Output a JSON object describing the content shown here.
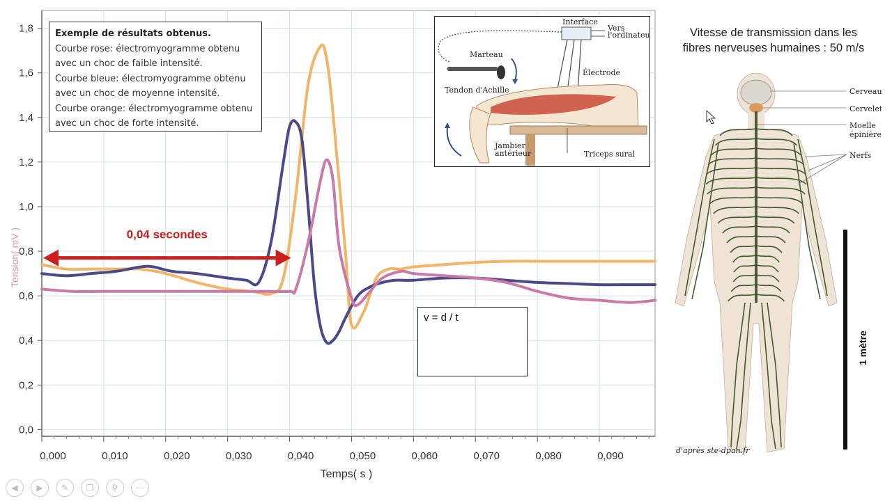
{
  "chart_data": {
    "type": "line",
    "xlabel": "Temps( s )",
    "ylabel": "Tension( mV )",
    "xlim": [
      0.0,
      0.099
    ],
    "ylim": [
      -0.03,
      1.88
    ],
    "x_ticks": [
      "0,000",
      "0,010",
      "0,020",
      "0,030",
      "0,040",
      "0,050",
      "0,060",
      "0,070",
      "0,080",
      "0,090"
    ],
    "y_ticks": [
      "0,0",
      "0,2",
      "0,4",
      "0,6",
      "0,8",
      "1,0",
      "1,2",
      "1,4",
      "1,6",
      "1,8"
    ],
    "grid": true,
    "series": [
      {
        "color": "#f2b466",
        "x": [
          0.0,
          0.004,
          0.008,
          0.012,
          0.016,
          0.02,
          0.025,
          0.03,
          0.034,
          0.037,
          0.039,
          0.041,
          0.043,
          0.045,
          0.046,
          0.047,
          0.049,
          0.05,
          0.052,
          0.054,
          0.056,
          0.058,
          0.06,
          0.065,
          0.07,
          0.075,
          0.08,
          0.085,
          0.09,
          0.095,
          0.099
        ],
        "y": [
          0.74,
          0.72,
          0.72,
          0.72,
          0.72,
          0.7,
          0.66,
          0.63,
          0.62,
          0.61,
          0.68,
          1.05,
          1.55,
          1.72,
          1.66,
          1.42,
          0.8,
          0.47,
          0.53,
          0.68,
          0.72,
          0.72,
          0.73,
          0.74,
          0.75,
          0.755,
          0.755,
          0.755,
          0.755,
          0.755,
          0.755
        ]
      },
      {
        "color": "#4a4a8a",
        "x": [
          0.0,
          0.004,
          0.008,
          0.012,
          0.016,
          0.018,
          0.021,
          0.025,
          0.03,
          0.033,
          0.035,
          0.037,
          0.039,
          0.04,
          0.041,
          0.042,
          0.043,
          0.044,
          0.045,
          0.046,
          0.047,
          0.048,
          0.049,
          0.051,
          0.053,
          0.055,
          0.057,
          0.06,
          0.065,
          0.07,
          0.075,
          0.08,
          0.085,
          0.09,
          0.095,
          0.099
        ],
        "y": [
          0.7,
          0.69,
          0.7,
          0.71,
          0.73,
          0.73,
          0.71,
          0.7,
          0.68,
          0.67,
          0.66,
          0.84,
          1.2,
          1.36,
          1.38,
          1.3,
          1.0,
          0.65,
          0.46,
          0.39,
          0.4,
          0.44,
          0.5,
          0.6,
          0.64,
          0.66,
          0.67,
          0.67,
          0.68,
          0.68,
          0.67,
          0.66,
          0.655,
          0.65,
          0.65,
          0.65
        ]
      },
      {
        "color": "#c97aa6",
        "x": [
          0.0,
          0.005,
          0.01,
          0.015,
          0.02,
          0.025,
          0.03,
          0.035,
          0.04,
          0.041,
          0.043,
          0.045,
          0.046,
          0.047,
          0.048,
          0.05,
          0.051,
          0.053,
          0.055,
          0.058,
          0.06,
          0.065,
          0.07,
          0.075,
          0.08,
          0.085,
          0.09,
          0.095,
          0.099
        ],
        "y": [
          0.63,
          0.62,
          0.62,
          0.62,
          0.62,
          0.62,
          0.62,
          0.62,
          0.62,
          0.63,
          0.84,
          1.12,
          1.21,
          1.12,
          0.82,
          0.59,
          0.56,
          0.62,
          0.68,
          0.71,
          0.7,
          0.69,
          0.68,
          0.66,
          0.62,
          0.59,
          0.58,
          0.57,
          0.58
        ]
      }
    ],
    "annotation": {
      "text": "0,04 secondes",
      "x_start": 0.0,
      "x_end": 0.04,
      "y": 0.77,
      "color": "#cc1f1f"
    }
  },
  "legend_box": {
    "title": "Exemple de résultats obtenus.",
    "lines": [
      "Courbe rose: électromyogramme obtenu",
      "avec un choc de faible intensité.",
      "Courbe bleue: électromyogramme obtenu",
      "avec un choc de moyenne intensité.",
      "Courbe orange: électromyogramme obtenu",
      "avec un choc de forte intensité."
    ]
  },
  "formula_box": {
    "text": "v = d / t"
  },
  "leg_diagram": {
    "labels": {
      "interface": "Interface",
      "vers": "Vers",
      "ordinateur": "l'ordinateur",
      "marteau": "Marteau",
      "electrode": "Électrode",
      "tendon": "Tendon d'Achille",
      "jambier1": "Jambier",
      "jambier2": "antérieur",
      "triceps": "Triceps sural"
    }
  },
  "speed_title": {
    "line1": "Vitesse de transmission dans les",
    "line2": "fibres nerveuses humaines : 50 m/s"
  },
  "body_labels": {
    "cerveau": "Cerveau",
    "cervelet": "Cervelet",
    "moelle1": "Moelle",
    "moelle2": "épinière",
    "nerfs": "Nerfs",
    "credit": "d'après ste-dpan.fr"
  },
  "scale_bar": {
    "label": "1 mètre"
  },
  "toolbar": {
    "icons": [
      "prev-icon",
      "next-icon",
      "pen-icon",
      "copy-icon",
      "zoom-icon",
      "more-icon"
    ]
  }
}
